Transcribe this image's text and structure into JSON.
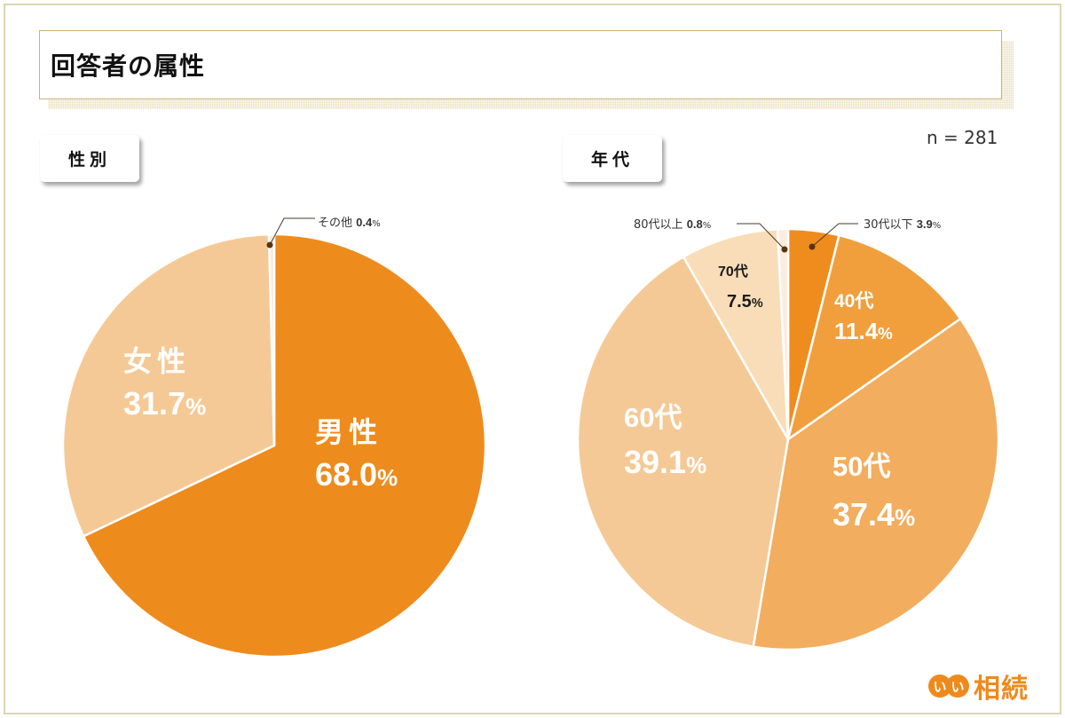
{
  "page": {
    "title": "回答者の属性",
    "sample_size": "n = 281"
  },
  "sections": {
    "gender": {
      "label": "性別"
    },
    "age": {
      "label": "年代"
    }
  },
  "logo": {
    "mark": [
      "い",
      "い"
    ],
    "text": "相続"
  },
  "colors": {
    "frame_border": "#dcd5b4",
    "title_border": "#cfb273",
    "title_shadow": "#e9dfbd",
    "brand_orange": "#ee8a1c"
  },
  "chart_data": [
    {
      "type": "pie",
      "title": "性別",
      "start_angle": "12 o'clock",
      "direction": "clockwise",
      "categories": [
        "男性",
        "女性",
        "その他"
      ],
      "values": [
        68.0,
        31.7,
        0.4
      ],
      "unit": "%",
      "colors": [
        "#ee8b1d",
        "#f5c995",
        "#faeadb"
      ],
      "labels": [
        {
          "name": "男性",
          "pct": "68.0",
          "style": "inside"
        },
        {
          "name": "女性",
          "pct": "31.7",
          "style": "inside"
        },
        {
          "name": "その他",
          "pct": "0.4",
          "style": "callout"
        }
      ]
    },
    {
      "type": "pie",
      "title": "年代",
      "start_angle": "12 o'clock",
      "direction": "clockwise",
      "categories": [
        "30代以下",
        "40代",
        "50代",
        "60代",
        "70代",
        "80代以上"
      ],
      "values": [
        3.9,
        11.4,
        37.4,
        39.1,
        7.5,
        0.8
      ],
      "unit": "%",
      "colors": [
        "#ef8c1e",
        "#f19f3c",
        "#f2ad5e",
        "#f5c995",
        "#f8ddb8",
        "#fbece0"
      ],
      "labels": [
        {
          "name": "30代以下",
          "pct": "3.9",
          "style": "callout"
        },
        {
          "name": "40代",
          "pct": "11.4",
          "style": "inside"
        },
        {
          "name": "50代",
          "pct": "37.4",
          "style": "inside"
        },
        {
          "name": "60代",
          "pct": "39.1",
          "style": "inside"
        },
        {
          "name": "70代",
          "pct": "7.5",
          "style": "inside-dark"
        },
        {
          "name": "80代以上",
          "pct": "0.8",
          "style": "callout"
        }
      ]
    }
  ]
}
